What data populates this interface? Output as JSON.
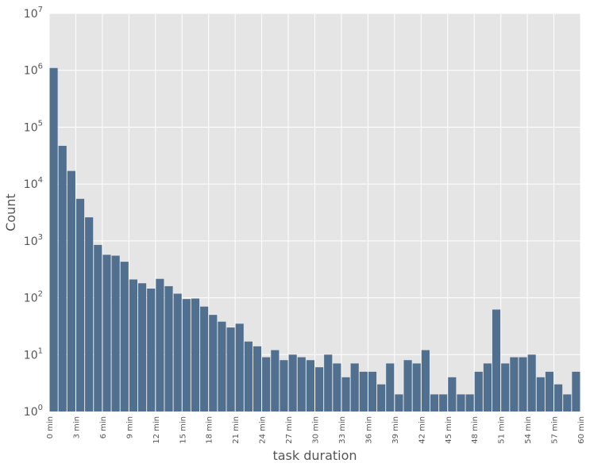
{
  "chart_data": {
    "type": "bar",
    "xlabel": "task duration",
    "ylabel": "Count",
    "y_scale": "log",
    "ylim": [
      1,
      10000000
    ],
    "grid": true,
    "y_tick_labels": [
      {
        "base": "10",
        "exp": "0"
      },
      {
        "base": "10",
        "exp": "1"
      },
      {
        "base": "10",
        "exp": "2"
      },
      {
        "base": "10",
        "exp": "3"
      },
      {
        "base": "10",
        "exp": "4"
      },
      {
        "base": "10",
        "exp": "5"
      },
      {
        "base": "10",
        "exp": "6"
      },
      {
        "base": "10",
        "exp": "7"
      }
    ],
    "x_tick_labels": [
      "0 min",
      "3 min",
      "6 min",
      "9 min",
      "12 min",
      "15 min",
      "18 min",
      "21 min",
      "24 min",
      "27 min",
      "30 min",
      "33 min",
      "36 min",
      "39 min",
      "42 min",
      "45 min",
      "48 min",
      "51 min",
      "54 min",
      "57 min",
      "60 min"
    ],
    "bar_color": "#51708f",
    "values": [
      1100000,
      47000,
      17000,
      5500,
      2600,
      850,
      570,
      550,
      430,
      210,
      180,
      145,
      215,
      160,
      118,
      95,
      97,
      70,
      50,
      38,
      30,
      35,
      17,
      14,
      9,
      12,
      8,
      10,
      9,
      8,
      6,
      10,
      7,
      4,
      7,
      5,
      5,
      3,
      7,
      2,
      8,
      7,
      12,
      2,
      2,
      4,
      2,
      2,
      5,
      7,
      62,
      7,
      9,
      9,
      10,
      4,
      5,
      3,
      2,
      5
    ]
  }
}
